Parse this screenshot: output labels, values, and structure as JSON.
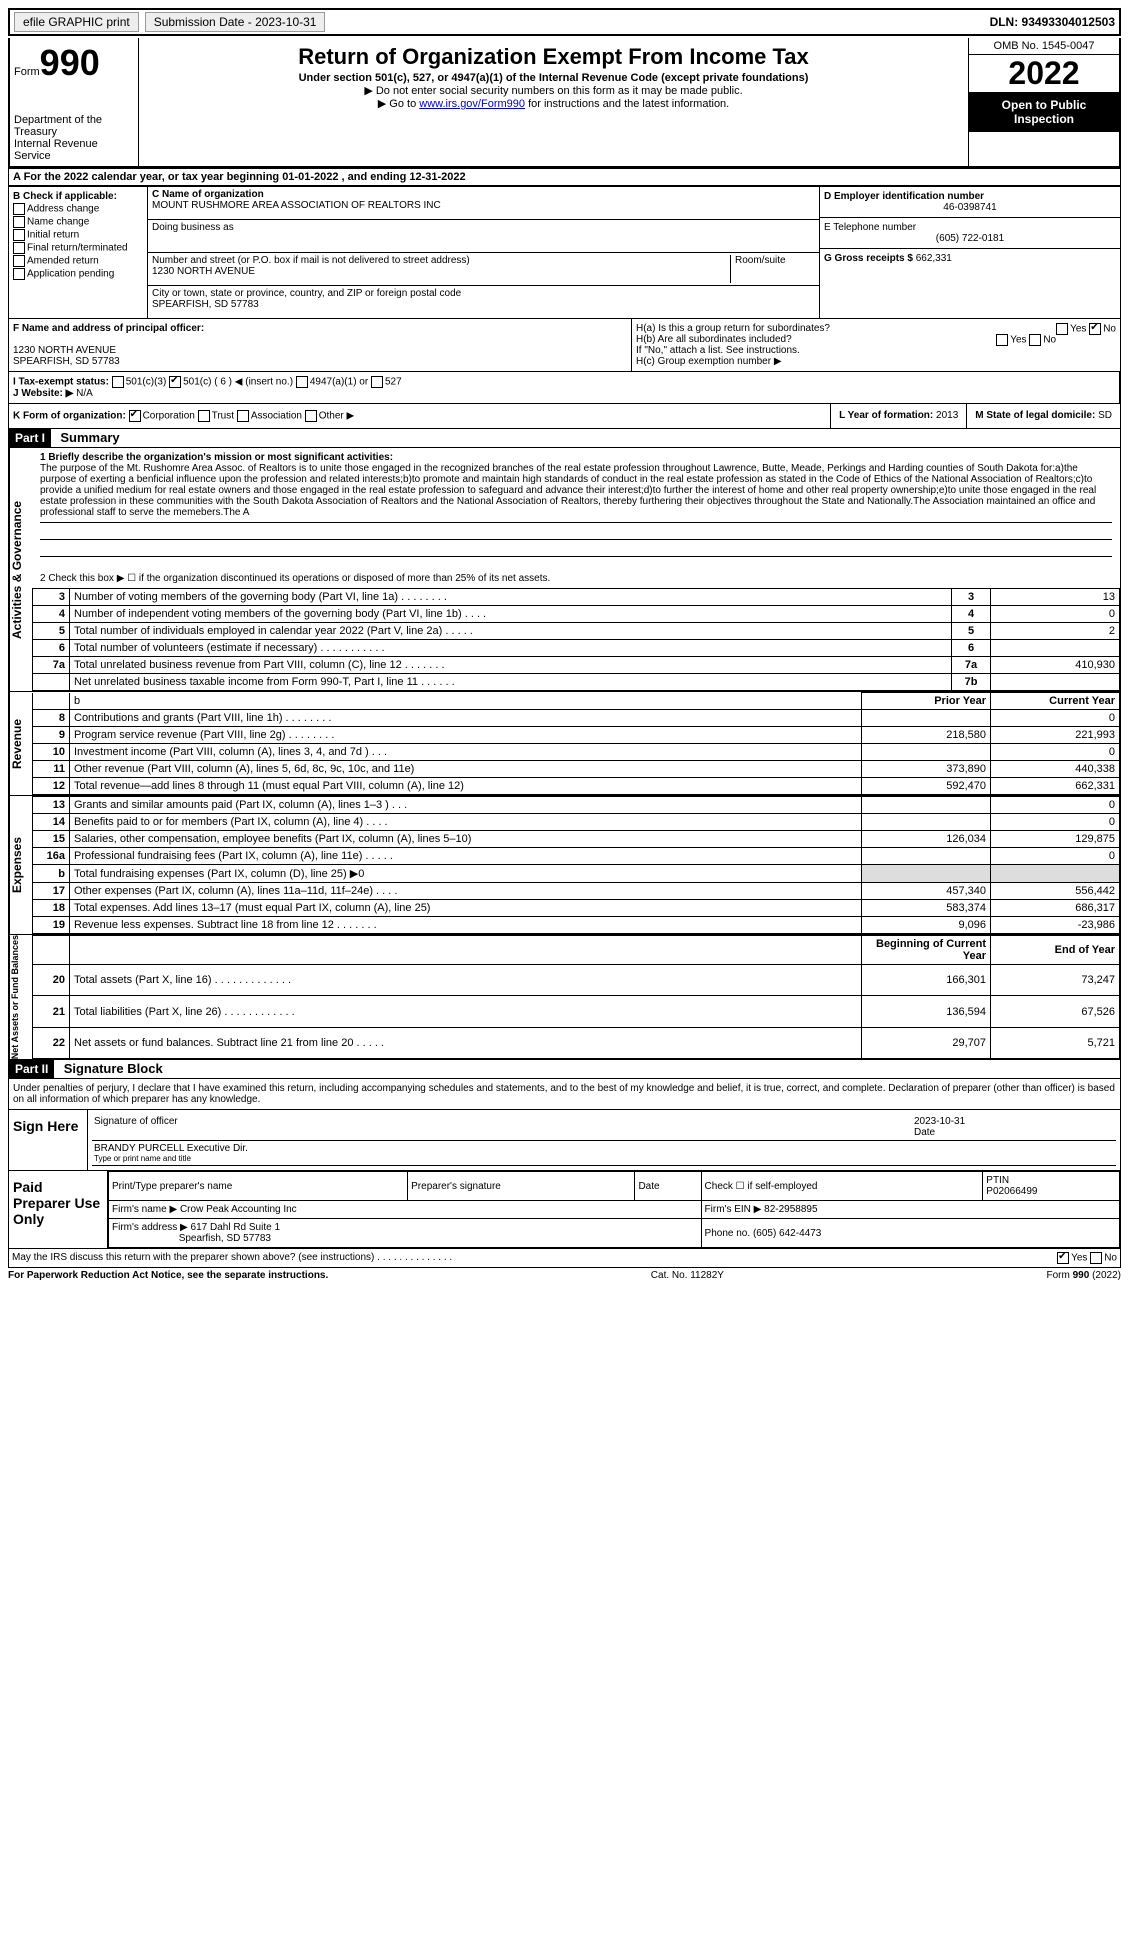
{
  "topbar": {
    "efile": "efile GRAPHIC print",
    "submission": "Submission Date - 2023-10-31",
    "dln": "DLN: 93493304012503"
  },
  "header": {
    "form_prefix": "Form",
    "form_no": "990",
    "title": "Return of Organization Exempt From Income Tax",
    "subtitle": "Under section 501(c), 527, or 4947(a)(1) of the Internal Revenue Code (except private foundations)",
    "note1": "▶ Do not enter social security numbers on this form as it may be made public.",
    "note2_pre": "▶ Go to ",
    "note2_link": "www.irs.gov/Form990",
    "note2_post": " for instructions and the latest information.",
    "omb": "OMB No. 1545-0047",
    "year": "2022",
    "inspect": "Open to Public Inspection",
    "dept": "Department of the Treasury",
    "irs": "Internal Revenue Service"
  },
  "rowA": "A For the 2022 calendar year, or tax year beginning 01-01-2022   , and ending 12-31-2022",
  "box_B": {
    "title": "B Check if applicable:",
    "opts": [
      "Address change",
      "Name change",
      "Initial return",
      "Final return/terminated",
      "Amended return",
      "Application pending"
    ]
  },
  "box_C": {
    "name_label": "C Name of organization",
    "name": "MOUNT RUSHMORE AREA ASSOCIATION OF REALTORS INC",
    "dba_label": "Doing business as",
    "dba": "",
    "addr_label": "Number and street (or P.O. box if mail is not delivered to street address)",
    "room_label": "Room/suite",
    "addr": "1230 NORTH AVENUE",
    "city_label": "City or town, state or province, country, and ZIP or foreign postal code",
    "city": "SPEARFISH, SD  57783"
  },
  "box_D": {
    "label": "D Employer identification number",
    "value": "46-0398741"
  },
  "box_E": {
    "label": "E Telephone number",
    "value": "(605) 722-0181"
  },
  "box_G": {
    "label": "G Gross receipts $",
    "value": "662,331"
  },
  "box_F": {
    "label": "F  Name and address of principal officer:",
    "line1": "1230 NORTH AVENUE",
    "line2": "SPEARFISH, SD  57783"
  },
  "box_H": {
    "a": "H(a)  Is this a group return for subordinates?",
    "b": "H(b)  Are all subordinates included?",
    "note": "If \"No,\" attach a list. See instructions.",
    "c": "H(c)  Group exemption number ▶"
  },
  "box_I": {
    "label": "I   Tax-exempt status:",
    "opts": [
      "501(c)(3)",
      "501(c) ( 6 ) ◀ (insert no.)",
      "4947(a)(1) or",
      "527"
    ]
  },
  "box_J": {
    "label": "J  Website: ▶",
    "value": "N/A"
  },
  "box_K": {
    "label": "K Form of organization:",
    "opts": [
      "Corporation",
      "Trust",
      "Association",
      "Other ▶"
    ]
  },
  "box_L": {
    "label": "L Year of formation:",
    "value": "2013"
  },
  "box_M": {
    "label": "M State of legal domicile:",
    "value": "SD"
  },
  "part1": {
    "header": "Part I",
    "title": "Summary",
    "line1_label": "1   Briefly describe the organization's mission or most significant activities:",
    "mission": "The purpose of the Mt. Rushomre Area Assoc. of Realtors is to unite those engaged in the recognized branches of the real estate profession throughout Lawrence, Butte, Meade, Perkings and Harding counties of South Dakota for:a)the purpose of exerting a benficial influence upon the profession and related interests;b)to promote and maintain high standards of conduct in the real estate profession as stated in the Code of Ethics of the National Association of Realtors;c)to provide a unified medium for real estate owners and those engaged in the real estate profession to safeguard and advance their interest;d)to further the interest of home and other real property ownership;e)to unite those engaged in the real estate profession in these communities with the South Dakota Association of Realtors and the National Association of Realtors, thereby furthering their objectives throughout the State and Nationally.The Association maintained an office and professional staff to serve the memebers.The A",
    "line2": "2   Check this box ▶ ☐ if the organization discontinued its operations or disposed of more than 25% of its net assets.",
    "rows_gov": [
      {
        "n": "3",
        "d": "Number of voting members of the governing body (Part VI, line 1a)   .   .   .   .   .   .   .   .",
        "ln": "3",
        "v": "13"
      },
      {
        "n": "4",
        "d": "Number of independent voting members of the governing body (Part VI, line 1b)   .   .   .   .",
        "ln": "4",
        "v": "0"
      },
      {
        "n": "5",
        "d": "Total number of individuals employed in calendar year 2022 (Part V, line 2a)   .   .   .   .   .",
        "ln": "5",
        "v": "2"
      },
      {
        "n": "6",
        "d": "Total number of volunteers (estimate if necessary)   .   .   .   .   .   .   .   .   .   .   .",
        "ln": "6",
        "v": ""
      },
      {
        "n": "7a",
        "d": "Total unrelated business revenue from Part VIII, column (C), line 12   .   .   .   .   .   .   .",
        "ln": "7a",
        "v": "410,930"
      },
      {
        "n": "",
        "d": "Net unrelated business taxable income from Form 990-T, Part I, line 11   .   .   .   .   .   .",
        "ln": "7b",
        "v": ""
      }
    ],
    "col_headers": {
      "py": "Prior Year",
      "cy": "Current Year"
    },
    "rows_rev": [
      {
        "n": "8",
        "d": "Contributions and grants (Part VIII, line 1h)   .   .   .   .   .   .   .   .",
        "py": "",
        "cy": "0"
      },
      {
        "n": "9",
        "d": "Program service revenue (Part VIII, line 2g)   .   .   .   .   .   .   .   .",
        "py": "218,580",
        "cy": "221,993"
      },
      {
        "n": "10",
        "d": "Investment income (Part VIII, column (A), lines 3, 4, and 7d )   .   .   .",
        "py": "",
        "cy": "0"
      },
      {
        "n": "11",
        "d": "Other revenue (Part VIII, column (A), lines 5, 6d, 8c, 9c, 10c, and 11e)",
        "py": "373,890",
        "cy": "440,338"
      },
      {
        "n": "12",
        "d": "Total revenue—add lines 8 through 11 (must equal Part VIII, column (A), line 12)",
        "py": "592,470",
        "cy": "662,331"
      }
    ],
    "rows_exp": [
      {
        "n": "13",
        "d": "Grants and similar amounts paid (Part IX, column (A), lines 1–3 )   .   .   .",
        "py": "",
        "cy": "0"
      },
      {
        "n": "14",
        "d": "Benefits paid to or for members (Part IX, column (A), line 4)   .   .   .   .",
        "py": "",
        "cy": "0"
      },
      {
        "n": "15",
        "d": "Salaries, other compensation, employee benefits (Part IX, column (A), lines 5–10)",
        "py": "126,034",
        "cy": "129,875"
      },
      {
        "n": "16a",
        "d": "Professional fundraising fees (Part IX, column (A), line 11e)   .   .   .   .   .",
        "py": "",
        "cy": "0"
      },
      {
        "n": "b",
        "d": "Total fundraising expenses (Part IX, column (D), line 25) ▶0",
        "py": "shaded",
        "cy": "shaded"
      },
      {
        "n": "17",
        "d": "Other expenses (Part IX, column (A), lines 11a–11d, 11f–24e)   .   .   .   .",
        "py": "457,340",
        "cy": "556,442"
      },
      {
        "n": "18",
        "d": "Total expenses. Add lines 13–17 (must equal Part IX, column (A), line 25)",
        "py": "583,374",
        "cy": "686,317"
      },
      {
        "n": "19",
        "d": "Revenue less expenses. Subtract line 18 from line 12   .   .   .   .   .   .   .",
        "py": "9,096",
        "cy": "-23,986"
      }
    ],
    "col_headers2": {
      "by": "Beginning of Current Year",
      "ey": "End of Year"
    },
    "rows_net": [
      {
        "n": "20",
        "d": "Total assets (Part X, line 16)   .   .   .   .   .   .   .   .   .   .   .   .   .",
        "py": "166,301",
        "cy": "73,247"
      },
      {
        "n": "21",
        "d": "Total liabilities (Part X, line 26)   .   .   .   .   .   .   .   .   .   .   .   .",
        "py": "136,594",
        "cy": "67,526"
      },
      {
        "n": "22",
        "d": "Net assets or fund balances. Subtract line 21 from line 20   .   .   .   .   .",
        "py": "29,707",
        "cy": "5,721"
      }
    ],
    "vlabels": {
      "gov": "Activities & Governance",
      "rev": "Revenue",
      "exp": "Expenses",
      "net": "Net Assets or Fund Balances"
    }
  },
  "part2": {
    "header": "Part II",
    "title": "Signature Block",
    "perjury": "Under penalties of perjury, I declare that I have examined this return, including accompanying schedules and statements, and to the best of my knowledge and belief, it is true, correct, and complete. Declaration of preparer (other than officer) is based on all information of which preparer has any knowledge.",
    "sign_here": "Sign Here",
    "sig_officer": "Signature of officer",
    "date_label": "Date",
    "date": "2023-10-31",
    "name_title": "BRANDY PURCELL  Executive Dir.",
    "type_name": "Type or print name and title",
    "paid": "Paid Preparer Use Only",
    "p_name_label": "Print/Type preparer's name",
    "p_sig_label": "Preparer's signature",
    "p_date_label": "Date",
    "p_check": "Check ☐ if self-employed",
    "p_ptin_label": "PTIN",
    "p_ptin": "P02066499",
    "firm_name_label": "Firm's name    ▶",
    "firm_name": "Crow Peak Accounting Inc",
    "firm_ein_label": "Firm's EIN ▶",
    "firm_ein": "82-2958895",
    "firm_addr_label": "Firm's address ▶",
    "firm_addr1": "617 Dahl Rd Suite 1",
    "firm_addr2": "Spearfish, SD  57783",
    "firm_phone_label": "Phone no.",
    "firm_phone": "(605) 642-4473",
    "discuss": "May the IRS discuss this return with the preparer shown above? (see instructions)   .   .   .   .   .   .   .   .   .   .   .   .   .   .",
    "yes": "Yes",
    "no": "No"
  },
  "footer": {
    "pra": "For Paperwork Reduction Act Notice, see the separate instructions.",
    "cat": "Cat. No. 11282Y",
    "form": "Form 990 (2022)"
  }
}
